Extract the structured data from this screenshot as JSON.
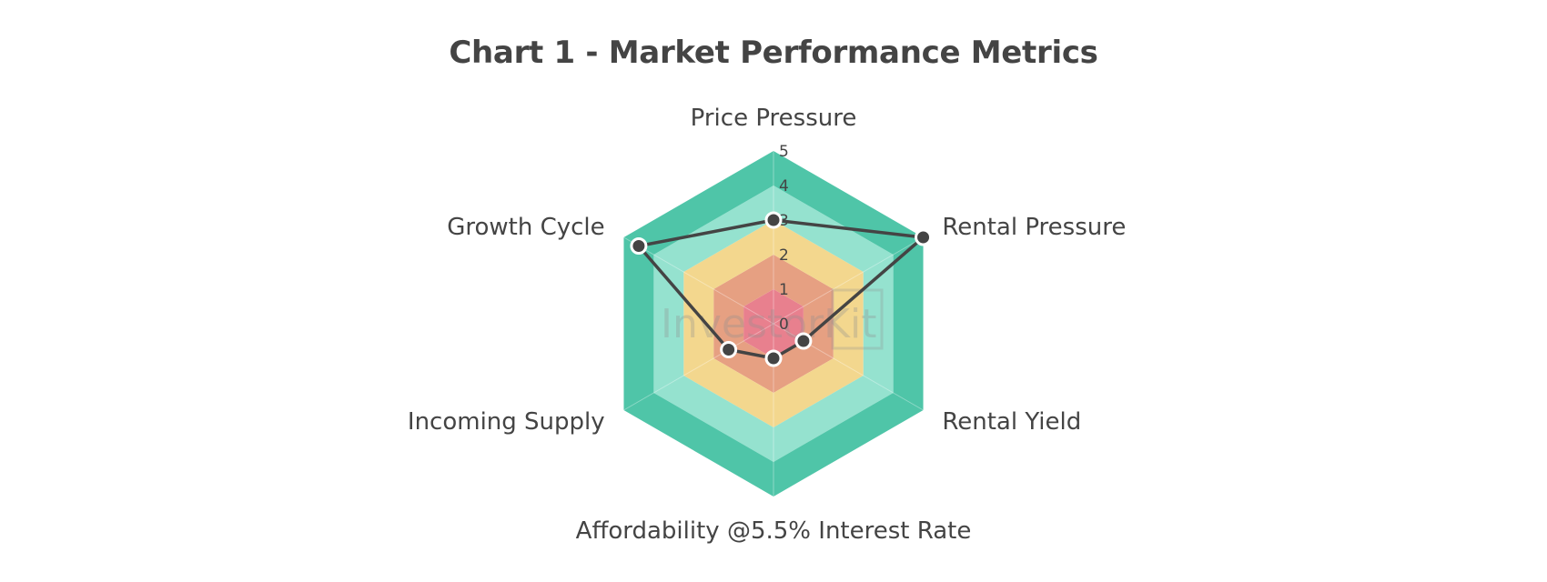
{
  "chart_data": {
    "type": "radar",
    "title": "Chart 1 - Market Performance Metrics",
    "axes": [
      "Price Pressure",
      "Rental Pressure",
      "Rental Yield",
      "Affordability @5.5% Interest Rate",
      "Incoming Supply",
      "Growth Cycle"
    ],
    "values": [
      3,
      5,
      1,
      1,
      1.5,
      4.5
    ],
    "range": [
      0,
      5
    ],
    "ticks": [
      "0",
      "1",
      "2",
      "3",
      "4",
      "5"
    ],
    "bands": [
      {
        "from": 0,
        "to": 1,
        "color": "#e8808e"
      },
      {
        "from": 1,
        "to": 2,
        "color": "#e6a082"
      },
      {
        "from": 2,
        "to": 3,
        "color": "#f3d78e"
      },
      {
        "from": 3,
        "to": 4,
        "color": "#95e2cf"
      },
      {
        "from": 4,
        "to": 5,
        "color": "#4fc5a8"
      }
    ],
    "line_color": "#444444",
    "marker_stroke": "#ffffff"
  },
  "watermark": {
    "text": "InvestorKit"
  }
}
